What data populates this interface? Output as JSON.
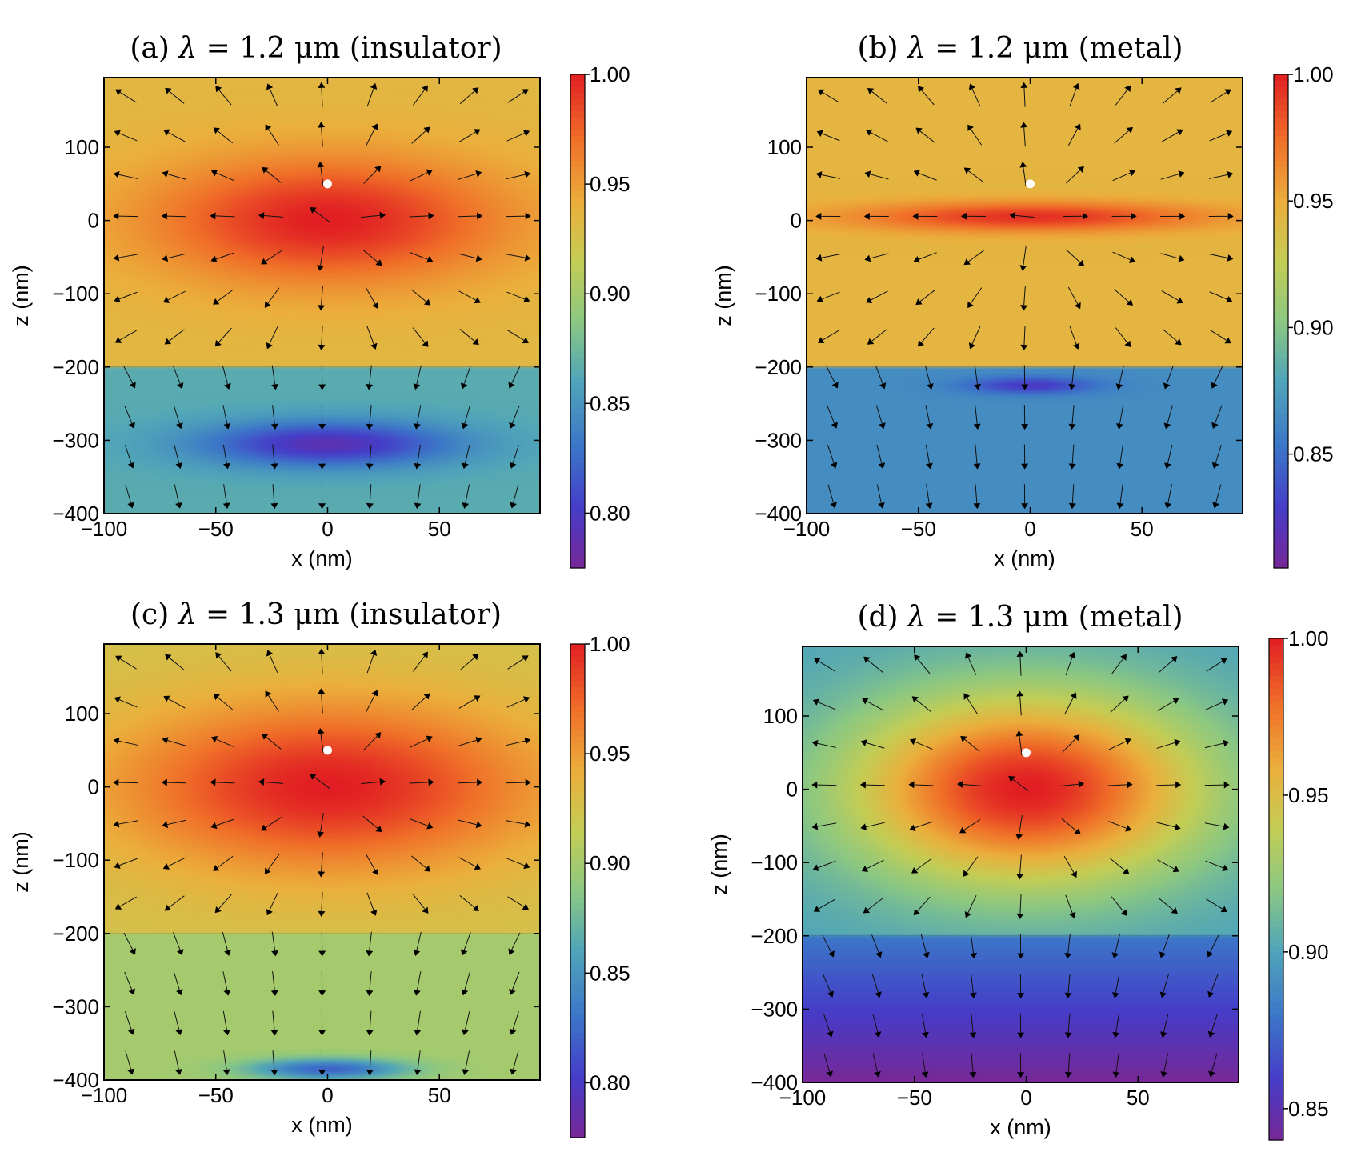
{
  "chart_data": [
    {
      "type": "heatmap",
      "panel": "a",
      "title_prefix": "(a)",
      "symbol": "λ",
      "title_rest": "= 1.2 μm (insulator)",
      "xlabel": "x (nm)",
      "ylabel": "z (nm)",
      "xlim": [
        -100,
        95
      ],
      "ylim": [
        -400,
        195
      ],
      "xticks": [
        -100,
        -50,
        0,
        50
      ],
      "xtick_labels": [
        "−100",
        "−50",
        "0",
        "50"
      ],
      "yticks": [
        -400,
        -300,
        -200,
        -100,
        0,
        100
      ],
      "ytick_labels": [
        "−400",
        "−300",
        "−200",
        "−100",
        "0",
        "100"
      ],
      "interface_z": -200,
      "dipole": {
        "x": 0,
        "z": 50
      },
      "colorbar": {
        "min": 0.775,
        "max": 1.0,
        "ticks": [
          1.0,
          0.95,
          0.9,
          0.85,
          0.8
        ],
        "tick_labels": [
          "1.00",
          "0.95",
          "0.90",
          "0.85",
          "0.80"
        ]
      },
      "field": {
        "upper_base": 0.935,
        "hot": {
          "x": 0,
          "z": 0,
          "amp": 0.065,
          "sx": 55,
          "sz": 60
        },
        "lower_base": 0.865,
        "cold": {
          "x": 0,
          "z": -305,
          "amp": 0.075,
          "sx": 40,
          "sz": 22
        }
      }
    },
    {
      "type": "heatmap",
      "panel": "b",
      "title_prefix": "(b)",
      "symbol": "λ",
      "title_rest": "= 1.2 μm (metal)",
      "xlabel": "x (nm)",
      "ylabel": "z (nm)",
      "xlim": [
        -100,
        95
      ],
      "ylim": [
        -400,
        195
      ],
      "xticks": [
        -100,
        -50,
        0,
        50
      ],
      "xtick_labels": [
        "−100",
        "−50",
        "0",
        "50"
      ],
      "yticks": [
        -400,
        -300,
        -200,
        -100,
        0,
        100
      ],
      "ytick_labels": [
        "−400",
        "−300",
        "−200",
        "−100",
        "0",
        "100"
      ],
      "interface_z": -200,
      "dipole": {
        "x": 0,
        "z": 50
      },
      "colorbar": {
        "min": 0.805,
        "max": 1.0,
        "ticks": [
          1.0,
          0.95,
          0.9,
          0.85
        ],
        "tick_labels": [
          "1.00",
          "0.95",
          "0.90",
          "0.85"
        ]
      },
      "field": {
        "upper_base": 0.945,
        "hot": {
          "x": 0,
          "z": 5,
          "amp": 0.05,
          "sx": 55,
          "sz": 14
        },
        "lower_base": 0.865,
        "cold": {
          "x": 0,
          "z": -225,
          "amp": 0.04,
          "sx": 20,
          "sz": 8
        }
      }
    },
    {
      "type": "heatmap",
      "panel": "c",
      "title_prefix": "(c)",
      "symbol": "λ",
      "title_rest": "= 1.3 μm (insulator)",
      "xlabel": "x (nm)",
      "ylabel": "z (nm)",
      "xlim": [
        -100,
        95
      ],
      "ylim": [
        -400,
        195
      ],
      "xticks": [
        -100,
        -50,
        0,
        50
      ],
      "xtick_labels": [
        "−100",
        "−50",
        "0",
        "50"
      ],
      "yticks": [
        -400,
        -300,
        -200,
        -100,
        0,
        100
      ],
      "ytick_labels": [
        "−400",
        "−300",
        "−200",
        "−100",
        "0",
        "100"
      ],
      "interface_z": -200,
      "dipole": {
        "x": 0,
        "z": 50
      },
      "colorbar": {
        "min": 0.775,
        "max": 1.0,
        "ticks": [
          1.0,
          0.95,
          0.9,
          0.85,
          0.8
        ],
        "tick_labels": [
          "1.00",
          "0.95",
          "0.90",
          "0.85",
          "0.80"
        ]
      },
      "field": {
        "upper_base": 0.925,
        "hot": {
          "x": 0,
          "z": 0,
          "amp": 0.075,
          "sx": 65,
          "sz": 80
        },
        "lower_base": 0.9,
        "cold": {
          "x": 0,
          "z": -385,
          "amp": 0.08,
          "sx": 25,
          "sz": 10
        }
      }
    },
    {
      "type": "heatmap",
      "panel": "d",
      "title_prefix": "(d)",
      "symbol": "λ",
      "title_rest": "= 1.3 μm (metal)",
      "xlabel": "x (nm)",
      "ylabel": "z (nm)",
      "xlim": [
        -100,
        95
      ],
      "ylim": [
        -400,
        195
      ],
      "xticks": [
        -100,
        -50,
        0,
        50
      ],
      "xtick_labels": [
        "−100",
        "−50",
        "0",
        "50"
      ],
      "yticks": [
        -400,
        -300,
        -200,
        -100,
        0,
        100
      ],
      "ytick_labels": [
        "−400",
        "−300",
        "−200",
        "−100",
        "0",
        "100"
      ],
      "interface_z": -200,
      "dipole": {
        "x": 0,
        "z": 50
      },
      "colorbar": {
        "min": 0.84,
        "max": 1.0,
        "ticks": [
          1.0,
          0.95,
          0.9,
          0.85
        ],
        "tick_labels": [
          "1.00",
          "0.95",
          "0.90",
          "0.85"
        ]
      },
      "field": {
        "upper_base": 0.9,
        "hot": {
          "x": 0,
          "z": 0,
          "amp": 0.1,
          "sx": 55,
          "sz": 90
        },
        "lower_base": 0.88,
        "lower_gradient": 0.04,
        "cold": {
          "x": 0,
          "z": -400,
          "amp": 0.0,
          "sx": 1,
          "sz": 1
        }
      }
    }
  ]
}
